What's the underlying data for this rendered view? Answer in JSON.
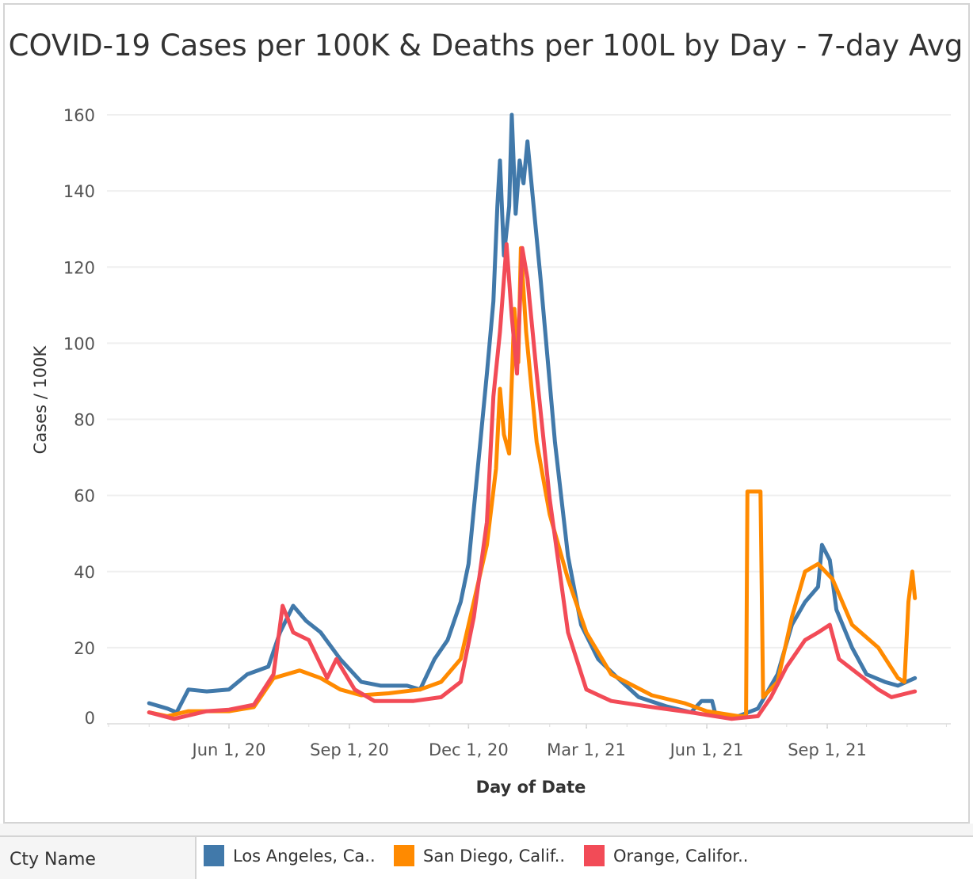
{
  "chart_data": {
    "type": "line",
    "title": "COVID-19 Cases per 100K & Deaths per 100L by Day - 7-day Avg",
    "xlabel": "Day of Date",
    "ylabel": "Cases / 100K",
    "ylim": [
      0,
      160
    ],
    "yticks": [
      0,
      20,
      40,
      60,
      80,
      100,
      120,
      140,
      160
    ],
    "xlim": [
      "2020-03-15",
      "2021-11-25"
    ],
    "xticks": [
      {
        "date": "2020-06-01",
        "label": "Jun 1, 20"
      },
      {
        "date": "2020-09-01",
        "label": "Sep 1, 20"
      },
      {
        "date": "2020-12-01",
        "label": "Dec 1, 20"
      },
      {
        "date": "2021-03-01",
        "label": "Mar 1, 21"
      },
      {
        "date": "2021-06-01",
        "label": "Jun 1, 21"
      },
      {
        "date": "2021-09-01",
        "label": "Sep 1, 21"
      }
    ],
    "grid": true,
    "legend_title": "Cty Name",
    "legend_position": "bottom",
    "series": [
      {
        "name": "Los Angeles, Ca..",
        "color": "#4179aa",
        "points": [
          [
            "2020-04-01",
            5.4
          ],
          [
            "2020-04-15",
            4
          ],
          [
            "2020-04-22",
            3
          ],
          [
            "2020-05-01",
            9
          ],
          [
            "2020-05-15",
            8.5
          ],
          [
            "2020-06-01",
            9
          ],
          [
            "2020-06-15",
            13
          ],
          [
            "2020-07-01",
            15
          ],
          [
            "2020-07-10",
            24
          ],
          [
            "2020-07-20",
            31
          ],
          [
            "2020-07-30",
            27
          ],
          [
            "2020-08-10",
            24
          ],
          [
            "2020-08-25",
            17
          ],
          [
            "2020-09-10",
            11
          ],
          [
            "2020-09-25",
            10
          ],
          [
            "2020-10-15",
            10
          ],
          [
            "2020-10-25",
            9
          ],
          [
            "2020-11-05",
            17
          ],
          [
            "2020-11-15",
            22
          ],
          [
            "2020-11-25",
            32
          ],
          [
            "2020-12-01",
            42
          ],
          [
            "2020-12-10",
            74
          ],
          [
            "2020-12-15",
            92
          ],
          [
            "2020-12-20",
            111
          ],
          [
            "2020-12-23",
            136
          ],
          [
            "2020-12-25",
            148
          ],
          [
            "2020-12-28",
            123
          ],
          [
            "2021-01-01",
            136
          ],
          [
            "2021-01-03",
            160
          ],
          [
            "2021-01-06",
            134
          ],
          [
            "2021-01-09",
            148
          ],
          [
            "2021-01-12",
            142
          ],
          [
            "2021-01-15",
            153
          ],
          [
            "2021-01-25",
            117
          ],
          [
            "2021-02-05",
            74
          ],
          [
            "2021-02-15",
            44
          ],
          [
            "2021-02-25",
            26
          ],
          [
            "2021-03-10",
            17
          ],
          [
            "2021-03-25",
            12
          ],
          [
            "2021-04-10",
            7
          ],
          [
            "2021-05-01",
            4.6
          ],
          [
            "2021-05-20",
            3
          ],
          [
            "2021-05-28",
            6
          ],
          [
            "2021-06-05",
            6
          ],
          [
            "2021-06-08",
            2
          ],
          [
            "2021-06-25",
            2
          ],
          [
            "2021-07-10",
            4
          ],
          [
            "2021-07-25",
            13
          ],
          [
            "2021-08-05",
            26
          ],
          [
            "2021-08-15",
            32
          ],
          [
            "2021-08-25",
            36
          ],
          [
            "2021-08-28",
            47
          ],
          [
            "2021-09-03",
            43
          ],
          [
            "2021-09-08",
            30
          ],
          [
            "2021-09-20",
            20
          ],
          [
            "2021-10-01",
            13
          ],
          [
            "2021-10-15",
            11
          ],
          [
            "2021-10-25",
            10
          ],
          [
            "2021-11-07",
            12
          ]
        ]
      },
      {
        "name": "San Diego, Calif..",
        "color": "#ff8a00",
        "points": [
          [
            "2020-04-01",
            3
          ],
          [
            "2020-04-15",
            2
          ],
          [
            "2020-05-01",
            3.3
          ],
          [
            "2020-06-01",
            3.3
          ],
          [
            "2020-06-20",
            4.4
          ],
          [
            "2020-07-05",
            12
          ],
          [
            "2020-07-25",
            14
          ],
          [
            "2020-08-10",
            12
          ],
          [
            "2020-08-25",
            9
          ],
          [
            "2020-09-10",
            7.5
          ],
          [
            "2020-10-01",
            8
          ],
          [
            "2020-10-25",
            9
          ],
          [
            "2020-11-10",
            11
          ],
          [
            "2020-11-25",
            17
          ],
          [
            "2020-12-05",
            32
          ],
          [
            "2020-12-15",
            47
          ],
          [
            "2020-12-22",
            67
          ],
          [
            "2020-12-25",
            88
          ],
          [
            "2020-12-28",
            76
          ],
          [
            "2021-01-01",
            71
          ],
          [
            "2021-01-05",
            109
          ],
          [
            "2021-01-08",
            95
          ],
          [
            "2021-01-10",
            125
          ],
          [
            "2021-01-14",
            103
          ],
          [
            "2021-01-22",
            74
          ],
          [
            "2021-02-01",
            55
          ],
          [
            "2021-02-15",
            38
          ],
          [
            "2021-03-01",
            24
          ],
          [
            "2021-03-20",
            13
          ],
          [
            "2021-04-20",
            7.5
          ],
          [
            "2021-05-15",
            5.4
          ],
          [
            "2021-06-01",
            3.3
          ],
          [
            "2021-06-25",
            2
          ],
          [
            "2021-07-01",
            2
          ],
          [
            "2021-07-02",
            61
          ],
          [
            "2021-07-12",
            61
          ],
          [
            "2021-07-14",
            7
          ],
          [
            "2021-07-25",
            11
          ],
          [
            "2021-08-05",
            28
          ],
          [
            "2021-08-15",
            40
          ],
          [
            "2021-08-25",
            42
          ],
          [
            "2021-09-05",
            38
          ],
          [
            "2021-09-20",
            26
          ],
          [
            "2021-10-10",
            20
          ],
          [
            "2021-10-25",
            12
          ],
          [
            "2021-10-30",
            11
          ],
          [
            "2021-11-02",
            32
          ],
          [
            "2021-11-05",
            40
          ],
          [
            "2021-11-07",
            33
          ]
        ]
      },
      {
        "name": "Orange, Califor..",
        "color": "#f24b57",
        "points": [
          [
            "2020-04-01",
            3
          ],
          [
            "2020-04-20",
            1.3
          ],
          [
            "2020-05-15",
            3.3
          ],
          [
            "2020-06-01",
            3.7
          ],
          [
            "2020-06-20",
            5
          ],
          [
            "2020-07-05",
            13
          ],
          [
            "2020-07-12",
            31
          ],
          [
            "2020-07-20",
            24
          ],
          [
            "2020-08-01",
            22
          ],
          [
            "2020-08-15",
            12
          ],
          [
            "2020-08-22",
            17
          ],
          [
            "2020-09-05",
            9
          ],
          [
            "2020-09-20",
            6
          ],
          [
            "2020-10-20",
            6
          ],
          [
            "2020-11-10",
            7
          ],
          [
            "2020-11-25",
            11
          ],
          [
            "2020-12-05",
            28
          ],
          [
            "2020-12-15",
            53
          ],
          [
            "2020-12-20",
            86
          ],
          [
            "2020-12-25",
            103
          ],
          [
            "2020-12-30",
            126
          ],
          [
            "2021-01-03",
            107
          ],
          [
            "2021-01-07",
            92
          ],
          [
            "2021-01-11",
            125
          ],
          [
            "2021-01-15",
            117
          ],
          [
            "2021-01-22",
            92
          ],
          [
            "2021-02-01",
            59
          ],
          [
            "2021-02-15",
            24
          ],
          [
            "2021-03-01",
            9
          ],
          [
            "2021-03-20",
            6
          ],
          [
            "2021-04-20",
            4.4
          ],
          [
            "2021-05-20",
            3
          ],
          [
            "2021-06-20",
            1.3
          ],
          [
            "2021-07-10",
            2
          ],
          [
            "2021-07-20",
            7
          ],
          [
            "2021-08-01",
            15
          ],
          [
            "2021-08-15",
            22
          ],
          [
            "2021-08-25",
            24
          ],
          [
            "2021-09-03",
            26
          ],
          [
            "2021-09-10",
            17
          ],
          [
            "2021-09-25",
            13
          ],
          [
            "2021-10-10",
            9
          ],
          [
            "2021-10-20",
            7
          ],
          [
            "2021-11-07",
            8.5
          ]
        ]
      }
    ]
  }
}
